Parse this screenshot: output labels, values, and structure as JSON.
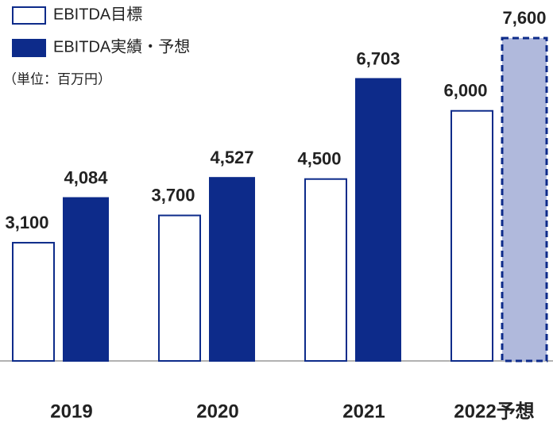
{
  "chart_data": {
    "type": "bar",
    "unit_label": "（単位：百万円）",
    "categories": [
      "2019",
      "2020",
      "2021",
      "2022予想"
    ],
    "series": [
      {
        "name": "EBITDA目標",
        "color": "#0d2b8a",
        "fill": "#ffffff",
        "values": [
          3100,
          3700,
          4500,
          6000
        ],
        "value_labels": [
          "3,100",
          "3,700",
          "4,500",
          "6,000"
        ]
      },
      {
        "name": "EBITDA実績・予想",
        "color": "#0d2b8a",
        "fill": "#0d2b8a",
        "colors": [
          "#0d2b8a",
          "#0d2b8a",
          "#0d2b8a",
          "#b0b9dc"
        ],
        "values": [
          4084,
          4527,
          6703,
          7600
        ],
        "value_labels": [
          "4,084",
          "4,527",
          "6,703",
          "7,600"
        ]
      }
    ],
    "ylim": [
      500,
      7700
    ],
    "legend": "top-left"
  }
}
